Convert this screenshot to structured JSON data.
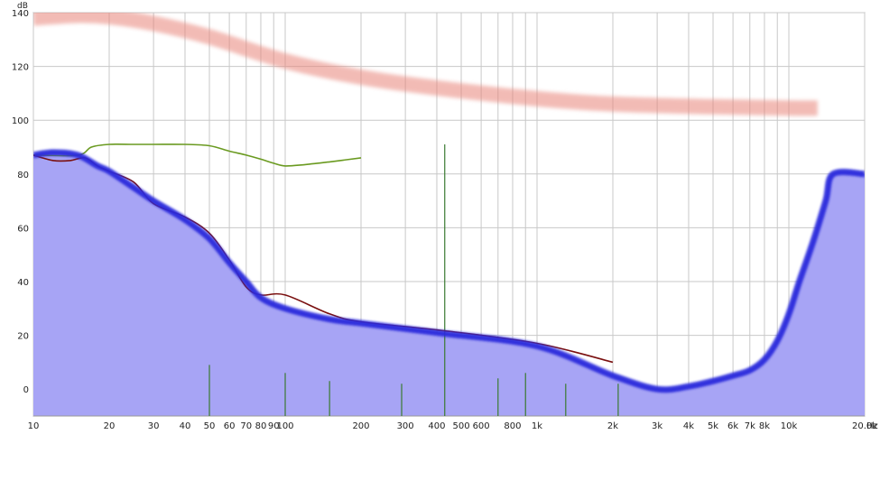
{
  "chart_data": {
    "type": "line",
    "title": "",
    "xlabel": "",
    "ylabel": "",
    "x_unit_label": "Hz",
    "y_unit_label": "dB",
    "x_scale": "log",
    "xlim": [
      10,
      20000
    ],
    "ylim": [
      -10,
      140
    ],
    "grid": true,
    "y_ticks": [
      0,
      20,
      40,
      60,
      80,
      100,
      120,
      140
    ],
    "x_ticks": [
      {
        "value": 10,
        "label": "10"
      },
      {
        "value": 20,
        "label": "20"
      },
      {
        "value": 30,
        "label": "30"
      },
      {
        "value": 40,
        "label": "40"
      },
      {
        "value": 50,
        "label": "50"
      },
      {
        "value": 60,
        "label": "60"
      },
      {
        "value": 70,
        "label": "70"
      },
      {
        "value": 80,
        "label": "80"
      },
      {
        "value": 90,
        "label": "90"
      },
      {
        "value": 100,
        "label": "100"
      },
      {
        "value": 200,
        "label": "200"
      },
      {
        "value": 300,
        "label": "300"
      },
      {
        "value": 400,
        "label": "400"
      },
      {
        "value": 500,
        "label": "500"
      },
      {
        "value": 600,
        "label": "600"
      },
      {
        "value": 800,
        "label": "800"
      },
      {
        "value": 1000,
        "label": "1k"
      },
      {
        "value": 2000,
        "label": "2k"
      },
      {
        "value": 3000,
        "label": "3k"
      },
      {
        "value": 4000,
        "label": "4k"
      },
      {
        "value": 5000,
        "label": "5k"
      },
      {
        "value": 6000,
        "label": "6k"
      },
      {
        "value": 7000,
        "label": "7k"
      },
      {
        "value": 8000,
        "label": "8k"
      },
      {
        "value": 10000,
        "label": "10k"
      },
      {
        "value": 20000,
        "label": "20.0k"
      }
    ],
    "x_minor_grid": [
      10,
      20,
      30,
      40,
      50,
      60,
      70,
      80,
      90,
      100,
      200,
      300,
      400,
      500,
      600,
      700,
      800,
      900,
      1000,
      2000,
      3000,
      4000,
      5000,
      6000,
      7000,
      8000,
      9000,
      10000,
      20000
    ],
    "series": [
      {
        "key": "pink_band",
        "style": "band",
        "color": "#e8857a",
        "x": [
          10,
          15,
          20,
          30,
          50,
          100,
          200,
          400,
          1000,
          2000,
          5000,
          10000,
          13000
        ],
        "y": [
          138,
          139,
          138.5,
          136,
          131,
          122,
          116,
          112,
          108,
          106,
          105,
          104.5,
          104.5
        ]
      },
      {
        "key": "green_curve",
        "style": "line",
        "color": "#6a9a20",
        "x": [
          10,
          15,
          17,
          20,
          25,
          30,
          40,
          50,
          60,
          70,
          80,
          90,
          100,
          120,
          150,
          200
        ],
        "y": [
          87,
          87,
          90,
          91,
          91,
          91,
          91,
          90.5,
          88.5,
          87,
          85.5,
          84,
          83,
          83.5,
          84.5,
          86
        ]
      },
      {
        "key": "dark_red_curve",
        "style": "line",
        "color": "#7a1010",
        "x": [
          10,
          12,
          14,
          16,
          18,
          20,
          25,
          30,
          40,
          50,
          60,
          70,
          80,
          100,
          150,
          200,
          400,
          1000,
          2000
        ],
        "y": [
          87,
          85,
          85,
          86,
          83,
          81,
          77,
          69,
          64,
          58,
          48,
          38,
          35,
          35,
          28,
          25,
          22,
          17,
          10
        ]
      },
      {
        "key": "blue_curve",
        "style": "fill-line",
        "color": "#2b2bdc",
        "fill": "#a7a4f5",
        "x": [
          10,
          12,
          15,
          18,
          20,
          25,
          30,
          40,
          50,
          60,
          70,
          80,
          100,
          150,
          200,
          400,
          1000,
          2000,
          3000,
          4000,
          5000,
          6000,
          7000,
          8000,
          9000,
          10000,
          11000,
          12500,
          14000,
          15000,
          20000
        ],
        "y": [
          87,
          88,
          87,
          83,
          81,
          75,
          70,
          63,
          56,
          47,
          40,
          34,
          30,
          26,
          24.5,
          21,
          16,
          5,
          0,
          1,
          3,
          5,
          7,
          11,
          18,
          28,
          40,
          55,
          70,
          80,
          80
        ]
      },
      {
        "key": "green_spectrum",
        "style": "spectrum",
        "color": "#3a7a30",
        "peaks": [
          {
            "x": 430,
            "y": 91
          },
          {
            "x": 50,
            "y": 9
          },
          {
            "x": 100,
            "y": 6
          },
          {
            "x": 150,
            "y": 3
          },
          {
            "x": 290,
            "y": 2
          },
          {
            "x": 700,
            "y": 4
          },
          {
            "x": 900,
            "y": 6
          },
          {
            "x": 1300,
            "y": 2
          },
          {
            "x": 2100,
            "y": 2
          }
        ]
      }
    ]
  }
}
